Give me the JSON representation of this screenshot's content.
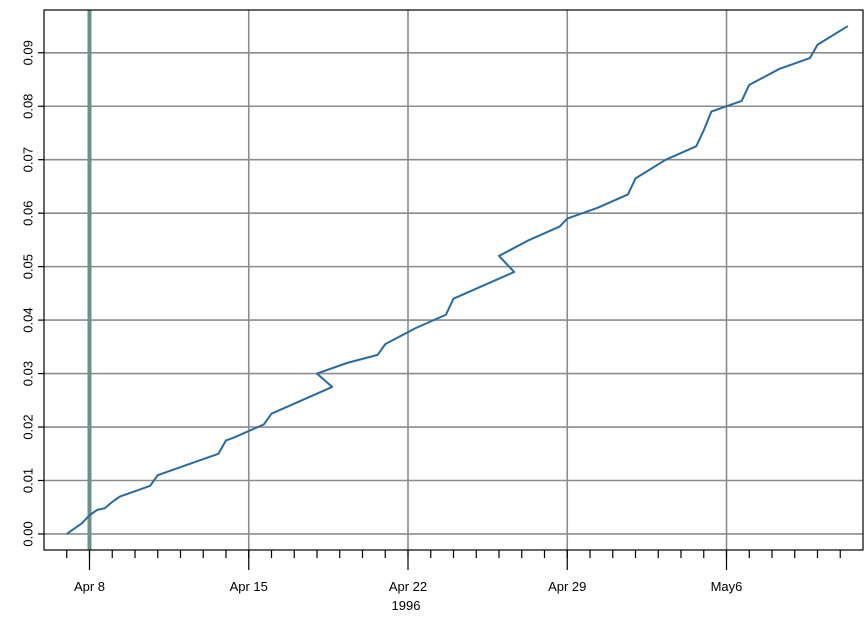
{
  "chart_data": {
    "type": "line",
    "title": "",
    "xlabel": "1996",
    "ylabel": "",
    "x_ticks": [
      {
        "date": "1996-04-08",
        "label": "Apr 8"
      },
      {
        "date": "1996-04-15",
        "label": "Apr 15"
      },
      {
        "date": "1996-04-22",
        "label": "Apr 22"
      },
      {
        "date": "1996-04-29",
        "label": "Apr 29"
      },
      {
        "date": "1996-05-06",
        "label": "May6"
      }
    ],
    "y_ticks": [
      "0.00",
      "0.01",
      "0.02",
      "0.03",
      "0.04",
      "0.05",
      "0.06",
      "0.07",
      "0.08",
      "0.09"
    ],
    "xlim": [
      "1996-04-06",
      "1996-05-12"
    ],
    "ylim": [
      -0.003,
      0.098
    ],
    "grid": true,
    "colors": {
      "line": "#2b6a9b",
      "grid": "#8c8c8c",
      "highlight_line": "#6f8f8a"
    },
    "reference_line_date": "1996-04-08",
    "series": [
      {
        "x": [
          "1996-04-07",
          "1996-04-07",
          "1996-04-07",
          "1996-04-08",
          "1996-04-08",
          "1996-04-08",
          "1996-04-09",
          "1996-04-09",
          "1996-04-10",
          "1996-04-11",
          "1996-04-12",
          "1996-04-13",
          "1996-04-14",
          "1996-04-14",
          "1996-04-15",
          "1996-04-16",
          "1996-04-17",
          "1996-04-18",
          "1996-04-18",
          "1996-04-19",
          "1996-04-20",
          "1996-04-21",
          "1996-04-22",
          "1996-04-23",
          "1996-04-24",
          "1996-04-25",
          "1996-04-26",
          "1996-04-26",
          "1996-04-27",
          "1996-04-28",
          "1996-04-29",
          "1996-04-30",
          "1996-05-01",
          "1996-05-02",
          "1996-05-03",
          "1996-05-04",
          "1996-05-05",
          "1996-05-05",
          "1996-05-06",
          "1996-05-07",
          "1996-05-08",
          "1996-05-09",
          "1996-05-10",
          "1996-05-11"
        ],
        "y": [
          0.0,
          0.001,
          0.002,
          0.0035,
          0.0045,
          0.0048,
          0.006,
          0.007,
          0.009,
          0.011,
          0.013,
          0.015,
          0.0175,
          0.018,
          0.0205,
          0.0225,
          0.025,
          0.0275,
          0.03,
          0.032,
          0.0335,
          0.0355,
          0.0385,
          0.041,
          0.044,
          0.0465,
          0.049,
          0.052,
          0.055,
          0.0575,
          0.059,
          0.061,
          0.0635,
          0.0665,
          0.07,
          0.0725,
          0.0755,
          0.079,
          0.081,
          0.084,
          0.087,
          0.089,
          0.0915,
          0.095
        ]
      }
    ]
  }
}
